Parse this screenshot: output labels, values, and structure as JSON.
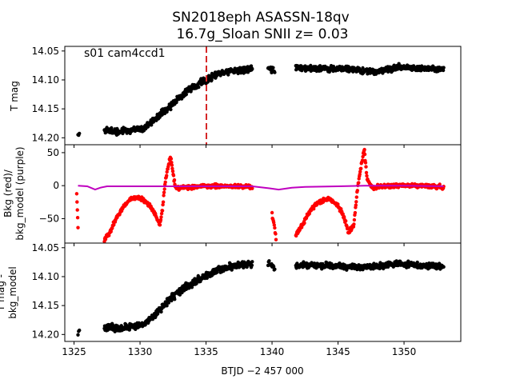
{
  "figure": {
    "title_line1": "SN2018eph  ASASSN-18qv",
    "title_line2": "16.7g_Sloan SNII z= 0.03",
    "xlabel": "BTJD −2 457 000",
    "xticks": [
      "1325",
      "1330",
      "1335",
      "1340",
      "1345",
      "1350"
    ]
  },
  "chart_data": [
    {
      "type": "scatter",
      "panel": "top",
      "annotation": "s01 cam4ccd1",
      "ylabel": "T mag",
      "yticks": [
        "14.05",
        "14.10",
        "14.15",
        "14.20"
      ],
      "ylim": [
        14.212,
        14.042
      ],
      "xlim": [
        1324.3,
        1354.3
      ],
      "marker_line_x": 1335.0,
      "colors": {
        "points": "#000000",
        "marker_line": "#d62728"
      },
      "series": [
        {
          "name": "T mag",
          "segments": [
            {
              "x_start": 1325.3,
              "x_end": 1325.4,
              "points": 3,
              "knots": [
                [
                  1325.3,
                  14.198
                ],
                [
                  1325.4,
                  14.192
                ]
              ],
              "noise": 0.003
            },
            {
              "x_start": 1327.3,
              "x_end": 1338.5,
              "points": 420,
              "knots": [
                [
                  1327.3,
                  14.186
                ],
                [
                  1328.5,
                  14.19
                ],
                [
                  1329.5,
                  14.186
                ],
                [
                  1330.3,
                  14.184
                ],
                [
                  1331.0,
                  14.17
                ],
                [
                  1332.0,
                  14.15
                ],
                [
                  1333.0,
                  14.13
                ],
                [
                  1334.0,
                  14.112
                ],
                [
                  1335.0,
                  14.1
                ],
                [
                  1336.0,
                  14.09
                ],
                [
                  1337.0,
                  14.085
                ],
                [
                  1338.5,
                  14.08
                ]
              ],
              "noise": 0.005
            },
            {
              "x_start": 1339.7,
              "x_end": 1340.2,
              "points": 14,
              "knots": [
                [
                  1339.7,
                  14.078
                ],
                [
                  1340.2,
                  14.085
                ]
              ],
              "noise": 0.004
            },
            {
              "x_start": 1341.8,
              "x_end": 1353.0,
              "points": 440,
              "knots": [
                [
                  1341.8,
                  14.08
                ],
                [
                  1344.0,
                  14.08
                ],
                [
                  1346.5,
                  14.083
                ],
                [
                  1348.0,
                  14.086
                ],
                [
                  1349.5,
                  14.078
                ],
                [
                  1351.0,
                  14.08
                ],
                [
                  1353.0,
                  14.082
                ]
              ],
              "noise": 0.004
            }
          ]
        }
      ]
    },
    {
      "type": "scatter",
      "panel": "middle",
      "ylabel_line1": "Bkg (red)/",
      "ylabel_line2": "bkg_model (purple)",
      "yticks": [
        "50",
        "0",
        "−50"
      ],
      "ytick_values": [
        50,
        0,
        -50
      ],
      "ylim": [
        -87,
        62
      ],
      "xlim": [
        1324.3,
        1354.3
      ],
      "colors": {
        "bkg": "#ff0000",
        "bkg_model": "#bf00bf"
      },
      "series": [
        {
          "name": "Bkg (red)",
          "segments": [
            {
              "x_start": 1325.2,
              "x_end": 1325.3,
              "points": 5,
              "knots": [
                [
                  1325.2,
                  -10
                ],
                [
                  1325.3,
                  -65
                ]
              ],
              "noise": 6
            },
            {
              "x_start": 1327.3,
              "x_end": 1338.5,
              "points": 360,
              "knots": [
                [
                  1327.3,
                  -82
                ],
                [
                  1327.7,
                  -70
                ],
                [
                  1328.2,
                  -50
                ],
                [
                  1328.8,
                  -30
                ],
                [
                  1329.3,
                  -20
                ],
                [
                  1329.8,
                  -18
                ],
                [
                  1330.3,
                  -22
                ],
                [
                  1330.8,
                  -32
                ],
                [
                  1331.2,
                  -45
                ],
                [
                  1331.5,
                  -60
                ],
                [
                  1331.7,
                  -35
                ],
                [
                  1331.9,
                  5
                ],
                [
                  1332.1,
                  25
                ],
                [
                  1332.3,
                  45
                ],
                [
                  1332.5,
                  20
                ],
                [
                  1332.7,
                  -5
                ],
                [
                  1333.3,
                  -2
                ],
                [
                  1335.0,
                  -1
                ],
                [
                  1337.0,
                  -1
                ],
                [
                  1338.5,
                  -2
                ]
              ],
              "noise": 2.5
            },
            {
              "x_start": 1340.0,
              "x_end": 1340.3,
              "points": 10,
              "knots": [
                [
                  1340.0,
                  -40
                ],
                [
                  1340.3,
                  -80
                ]
              ],
              "noise": 4
            },
            {
              "x_start": 1341.8,
              "x_end": 1353.0,
              "points": 380,
              "knots": [
                [
                  1341.8,
                  -75
                ],
                [
                  1342.3,
                  -60
                ],
                [
                  1342.8,
                  -40
                ],
                [
                  1343.5,
                  -25
                ],
                [
                  1344.3,
                  -20
                ],
                [
                  1345.0,
                  -30
                ],
                [
                  1345.5,
                  -50
                ],
                [
                  1345.8,
                  -72
                ],
                [
                  1346.2,
                  -58
                ],
                [
                  1346.5,
                  0
                ],
                [
                  1346.8,
                  35
                ],
                [
                  1347.0,
                  55
                ],
                [
                  1347.2,
                  10
                ],
                [
                  1347.6,
                  -3
                ],
                [
                  1349.0,
                  0
                ],
                [
                  1351.0,
                  0
                ],
                [
                  1353.0,
                  -2
                ]
              ],
              "noise": 2.5
            }
          ]
        },
        {
          "name": "bkg_model (purple)",
          "line": [
            [
              1325.3,
              0
            ],
            [
              1326.0,
              -1
            ],
            [
              1326.6,
              -6
            ],
            [
              1327.0,
              -3
            ],
            [
              1327.5,
              -1
            ],
            [
              1330.0,
              -1
            ],
            [
              1335.0,
              -1
            ],
            [
              1338.5,
              -1
            ],
            [
              1339.8,
              -4
            ],
            [
              1340.5,
              -6
            ],
            [
              1341.5,
              -3
            ],
            [
              1342.5,
              -2
            ],
            [
              1345.0,
              -1
            ],
            [
              1347.0,
              0
            ],
            [
              1350.0,
              0
            ],
            [
              1353.0,
              -1
            ]
          ]
        }
      ]
    },
    {
      "type": "scatter",
      "panel": "bottom",
      "ylabel_line1": "T mag -",
      "ylabel_line2": "bkg_model",
      "yticks": [
        "14.05",
        "14.10",
        "14.15",
        "14.20"
      ],
      "ylim": [
        14.212,
        14.042
      ],
      "xlim": [
        1324.3,
        1354.3
      ],
      "colors": {
        "points": "#000000"
      },
      "series": [
        {
          "name": "T mag - bkg_model",
          "segments": [
            {
              "x_start": 1325.3,
              "x_end": 1325.4,
              "points": 3,
              "knots": [
                [
                  1325.3,
                  14.198
                ],
                [
                  1325.4,
                  14.192
                ]
              ],
              "noise": 0.003
            },
            {
              "x_start": 1327.3,
              "x_end": 1338.5,
              "points": 420,
              "knots": [
                [
                  1327.3,
                  14.188
                ],
                [
                  1328.5,
                  14.19
                ],
                [
                  1329.5,
                  14.186
                ],
                [
                  1330.3,
                  14.182
                ],
                [
                  1331.0,
                  14.168
                ],
                [
                  1332.0,
                  14.145
                ],
                [
                  1333.0,
                  14.125
                ],
                [
                  1334.0,
                  14.11
                ],
                [
                  1335.0,
                  14.098
                ],
                [
                  1336.0,
                  14.088
                ],
                [
                  1337.0,
                  14.082
                ],
                [
                  1338.5,
                  14.078
                ]
              ],
              "noise": 0.005
            },
            {
              "x_start": 1339.7,
              "x_end": 1340.2,
              "points": 14,
              "knots": [
                [
                  1339.7,
                  14.076
                ],
                [
                  1340.2,
                  14.085
                ]
              ],
              "noise": 0.004
            },
            {
              "x_start": 1341.8,
              "x_end": 1353.0,
              "points": 440,
              "knots": [
                [
                  1341.8,
                  14.08
                ],
                [
                  1344.0,
                  14.081
                ],
                [
                  1346.5,
                  14.084
                ],
                [
                  1348.0,
                  14.082
                ],
                [
                  1349.5,
                  14.078
                ],
                [
                  1351.0,
                  14.08
                ],
                [
                  1353.0,
                  14.082
                ]
              ],
              "noise": 0.004
            }
          ]
        }
      ]
    }
  ]
}
